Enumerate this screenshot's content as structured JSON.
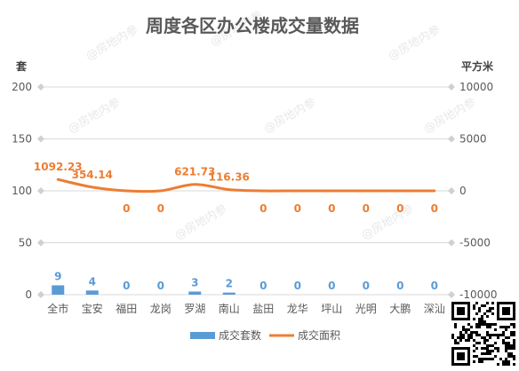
{
  "title": "周度各区办公楼成交量数据",
  "left_unit": "套",
  "right_unit": "平方米",
  "watermark": "@房地内参",
  "chart_data": {
    "type": "bar+line",
    "title": "周度各区办公楼成交量数据",
    "categories": [
      "全市",
      "宝安",
      "福田",
      "龙岗",
      "罗湖",
      "南山",
      "盐田",
      "龙华",
      "坪山",
      "光明",
      "大鹏",
      "深汕"
    ],
    "series": [
      {
        "name": "成交套数",
        "type": "bar",
        "axis": "left",
        "color": "#5b9bd5",
        "values": [
          9,
          4,
          0,
          0,
          3,
          2,
          0,
          0,
          0,
          0,
          0,
          0
        ],
        "labels": [
          "9",
          "4",
          "0",
          "0",
          "3",
          "2",
          "0",
          "0",
          "0",
          "0",
          "0",
          "0"
        ]
      },
      {
        "name": "成交面积",
        "type": "line",
        "axis": "right",
        "color": "#ed7d31",
        "values": [
          1092.23,
          354.14,
          0,
          0,
          621.73,
          116.36,
          0,
          0,
          0,
          0,
          0,
          0
        ],
        "labels": [
          "1092.23",
          "354.14",
          "0",
          "0",
          "621.73",
          "116.36",
          "0",
          "0",
          "0",
          "0",
          "0",
          "0"
        ]
      }
    ],
    "y_left": {
      "label": "套",
      "ylim": [
        0,
        200
      ],
      "ticks": [
        0,
        50,
        100,
        150,
        200
      ]
    },
    "y_right": {
      "label": "平方米",
      "ylim": [
        -10000,
        10000
      ],
      "ticks": [
        -10000,
        -5000,
        0,
        5000,
        10000
      ]
    },
    "legend": {
      "position": "bottom",
      "items": [
        "成交套数",
        "成交面积"
      ]
    },
    "grid": true
  }
}
